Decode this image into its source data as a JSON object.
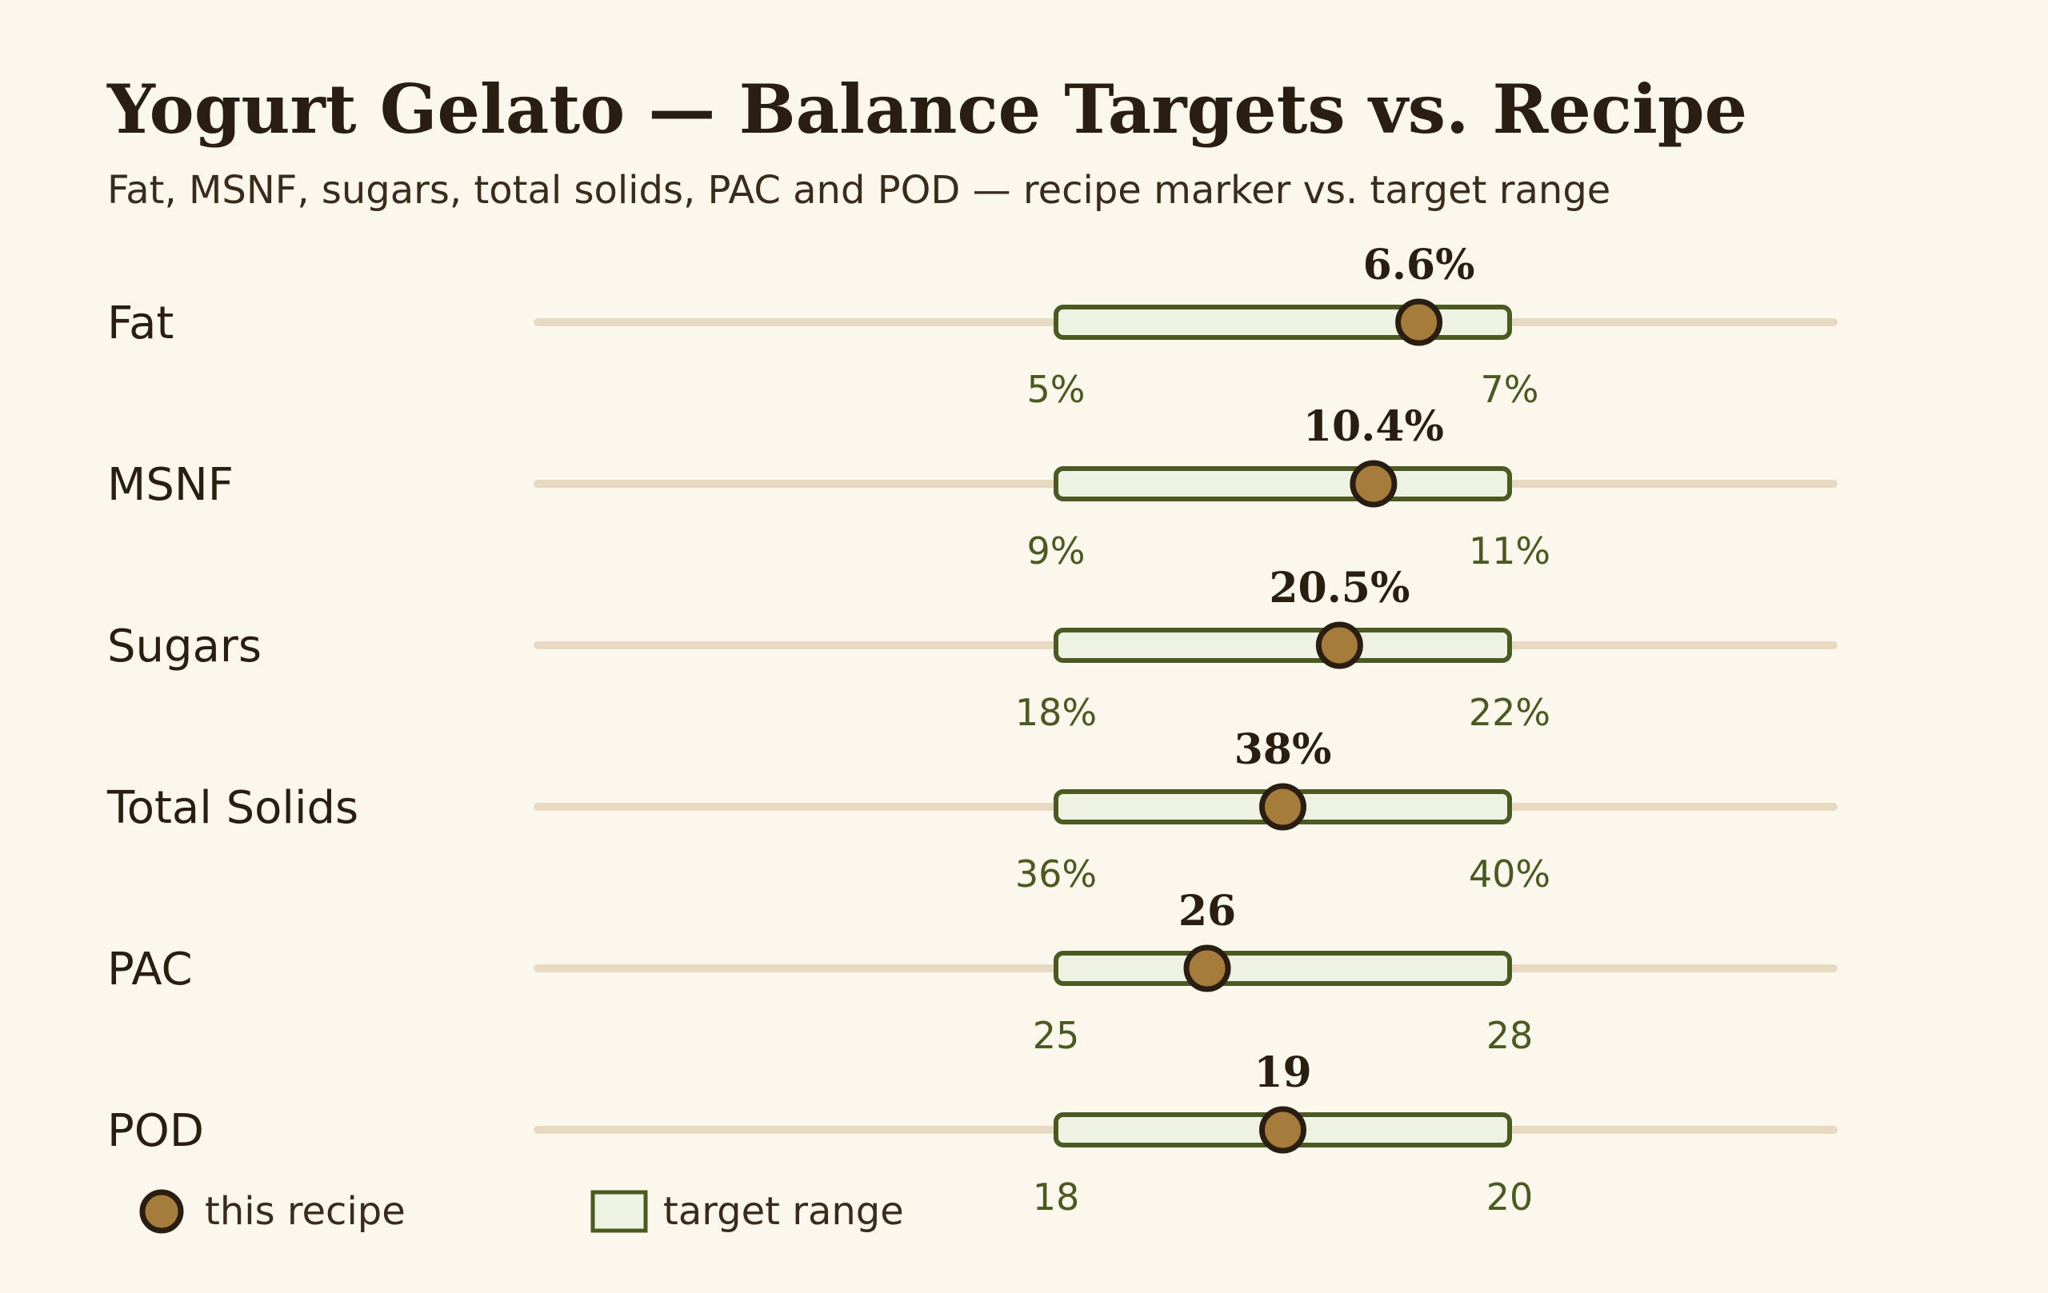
{
  "chart_data": {
    "type": "bullet",
    "title": "Yogurt Gelato — Balance Targets vs. Recipe",
    "subtitle": "Fat, MSNF, sugars, total solids, PAC and POD — recipe marker vs. target range",
    "rows": [
      {
        "name": "Fat",
        "value": 6.6,
        "value_label": "6.6%",
        "range": [
          5,
          7
        ],
        "range_labels": [
          "5%",
          "7%"
        ]
      },
      {
        "name": "MSNF",
        "value": 10.4,
        "value_label": "10.4%",
        "range": [
          9,
          11
        ],
        "range_labels": [
          "9%",
          "11%"
        ]
      },
      {
        "name": "Sugars",
        "value": 20.5,
        "value_label": "20.5%",
        "range": [
          18,
          22
        ],
        "range_labels": [
          "18%",
          "22%"
        ]
      },
      {
        "name": "Total Solids",
        "value": 38,
        "value_label": "38%",
        "range": [
          36,
          40
        ],
        "range_labels": [
          "36%",
          "40%"
        ]
      },
      {
        "name": "PAC",
        "value": 26,
        "value_label": "26",
        "range": [
          25,
          28
        ],
        "range_labels": [
          "25",
          "28"
        ]
      },
      {
        "name": "POD",
        "value": 19,
        "value_label": "19",
        "range": [
          18,
          20
        ],
        "range_labels": [
          "18",
          "20"
        ]
      }
    ],
    "legend": {
      "recipe": "this recipe",
      "range": "target range"
    },
    "colors": {
      "background": "#fbf7ec",
      "track": "#e8d9c2",
      "range_fill": "#eef2e2",
      "range_stroke": "#4a5a22",
      "marker_fill": "#a67c3d",
      "marker_stroke": "#2a1e12"
    }
  }
}
